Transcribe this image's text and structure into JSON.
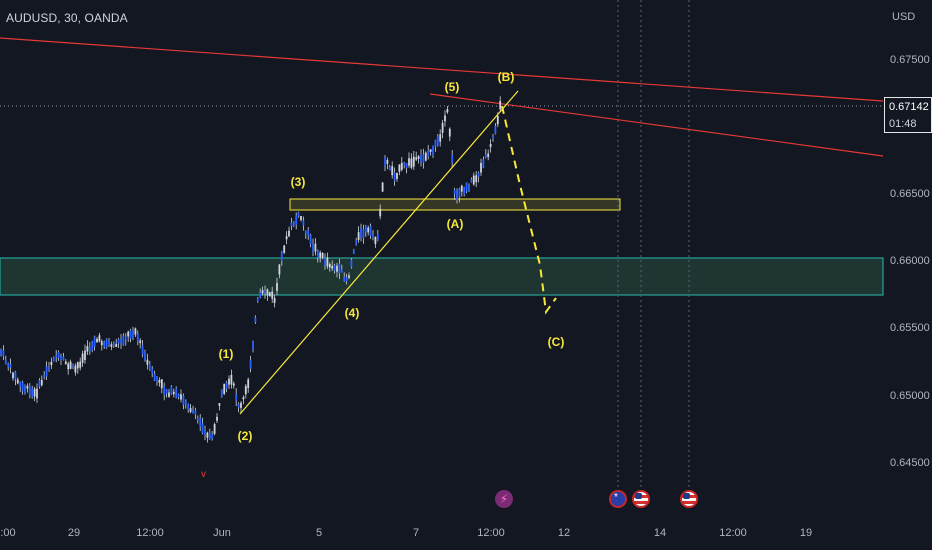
{
  "header": {
    "symbol": "AUDUSD, 30, OANDA",
    "currency": "USD"
  },
  "price_axis": [
    "0.67500",
    "0.66500",
    "0.66000",
    "0.65500",
    "0.65000",
    "0.64500"
  ],
  "current_price": {
    "price": "0.67142",
    "countdown": "01:48"
  },
  "time_axis": [
    ":00",
    "29",
    "12:00",
    "Jun",
    "5",
    "7",
    "12:00",
    "12",
    "14",
    "12:00",
    "19"
  ],
  "wave_labels": [
    "(1)",
    "(2)",
    "(3)",
    "(4)",
    "(5)",
    "(A)",
    "(B)",
    "(C)"
  ],
  "low_marker": "v",
  "events": {
    "bolt_icon": "lightning-bolt-icon",
    "flags": [
      "australia-flag-icon",
      "usa-flag-icon",
      "usa-flag-icon"
    ]
  },
  "colors": {
    "background": "#131722",
    "candle": "#d1d4dc",
    "wave_label": "#f7e83a",
    "trendline": "#e53935",
    "support_zone": "#1f3a36",
    "support_border": "#26a69a",
    "resistance_box": "#f7e83a"
  }
}
